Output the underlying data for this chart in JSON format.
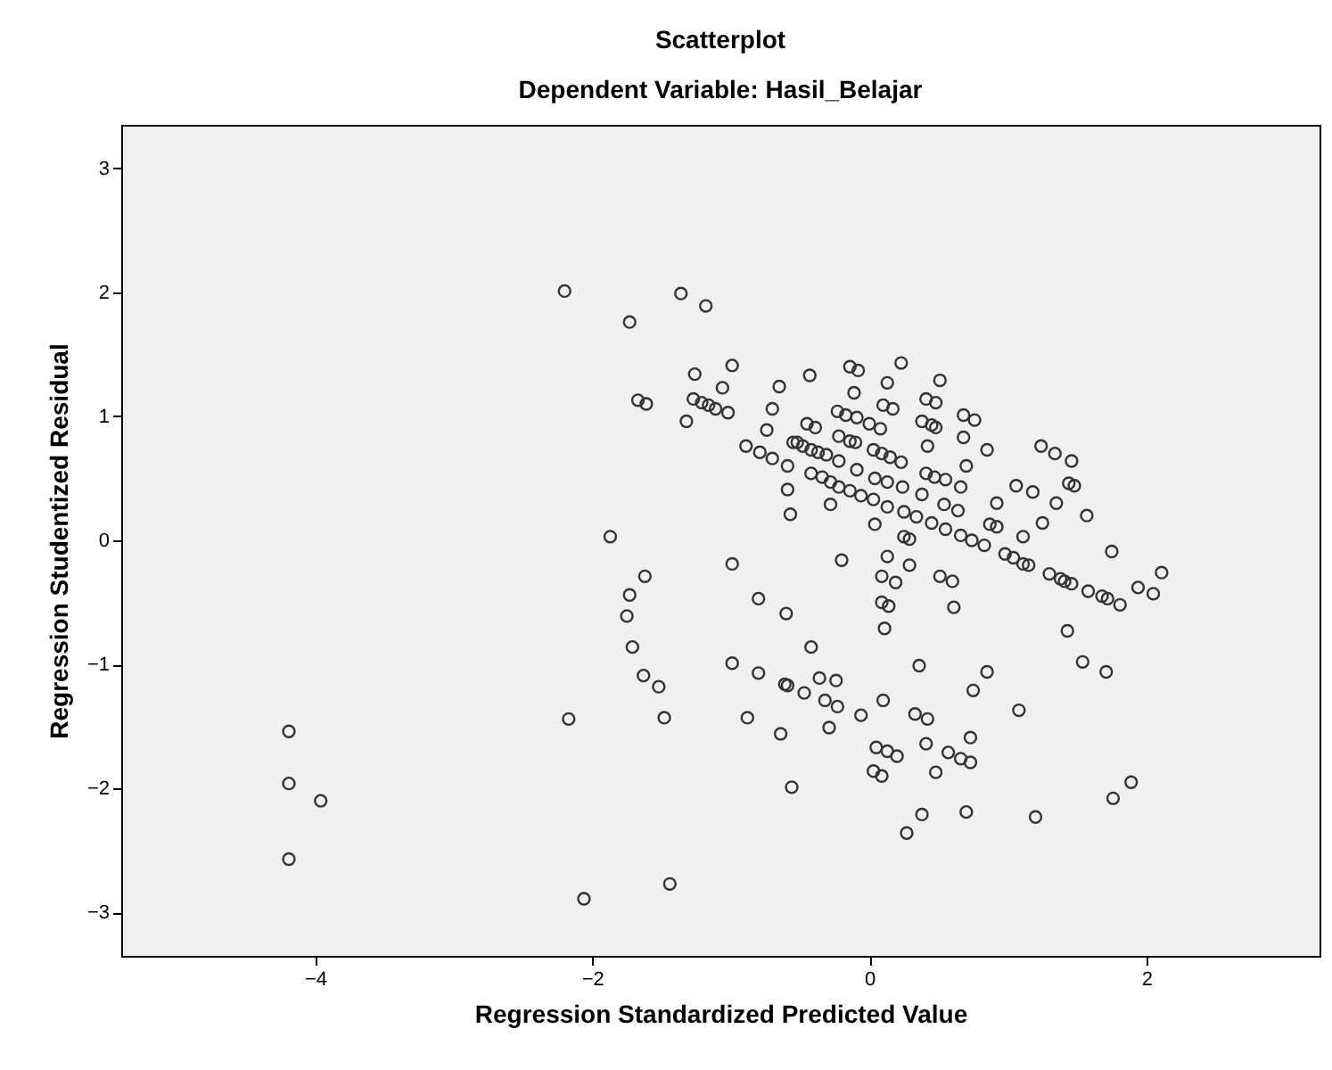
{
  "chart_data": {
    "type": "scatter",
    "title": "Scatterplot",
    "subtitle": "Dependent Variable: Hasil_Belajar",
    "xlabel": "Regression Standardized Predicted Value",
    "ylabel": "Regression Studentized Residual",
    "x": [
      -4.19,
      -4.19,
      -3.96,
      -4.19,
      -2.2,
      -1.36,
      -1.18,
      -1.73,
      -1.26,
      -0.99,
      -1.06,
      -1.67,
      -1.61,
      -1.27,
      -1.21,
      -1.16,
      -1.11,
      -1.02,
      -1.32,
      -0.65,
      -0.43,
      -0.7,
      -0.74,
      -0.89,
      -0.79,
      -0.7,
      -0.59,
      -0.59,
      -0.57,
      -0.45,
      -0.52,
      -1.87,
      -0.99,
      -1.62,
      -1.73,
      -1.75,
      -0.8,
      -0.6,
      -1.71,
      -1.63,
      -1.52,
      -1.48,
      -2.17,
      -0.99,
      -0.8,
      -0.61,
      -0.59,
      -0.47,
      -0.42,
      -0.88,
      -0.64,
      -0.56,
      -1.44,
      -2.06,
      -0.14,
      -0.08,
      0.23,
      0.13,
      0.51,
      -0.11,
      0.41,
      0.48,
      -0.23,
      -0.17,
      -0.09,
      0.1,
      0.17,
      0,
      0.08,
      0.38,
      0.45,
      0.48,
      0.68,
      0.76,
      -0.39,
      -0.22,
      -0.14,
      -0.1,
      0.68,
      0.85,
      0.42,
      0.7,
      -0.55,
      -0.48,
      -0.42,
      -0.37,
      -0.31,
      -0.22,
      -0.09,
      0.03,
      0.09,
      0.15,
      0.23,
      0.41,
      0.47,
      0.55,
      -0.42,
      -0.34,
      -0.28,
      -0.22,
      -0.14,
      0.04,
      0.13,
      0.24,
      0.38,
      0.66,
      -0.06,
      0.03,
      0.13,
      0.25,
      0.34,
      0.45,
      0.55,
      0.66,
      0.74,
      0.83,
      0.54,
      0.64,
      0.92,
      0.87,
      0.92,
      -0.28,
      0.04,
      0.25,
      0.29,
      0.13,
      0.29,
      -0.2,
      0.09,
      0.19,
      0.51,
      0.6,
      0.09,
      0.14,
      0.61,
      0.98,
      1.04,
      1.11,
      1.15,
      1.06,
      1.18,
      1.11,
      1.24,
      1.34,
      1.35,
      1.25,
      1.3,
      1.38,
      1.46,
      1.44,
      1.48,
      1.57,
      1.75,
      1.41,
      1.46,
      1.58,
      1.68,
      1.72,
      1.81,
      1.94,
      2.05,
      2.11,
      1.43,
      1.54,
      1.71,
      1.89,
      1.76,
      1.2,
      0.11,
      0.36,
      0.85,
      -0.36,
      -0.24,
      -0.32,
      -0.23,
      -0.06,
      0.1,
      -0.29,
      0.33,
      0.42,
      0.75,
      0.41,
      0.73,
      0.05,
      0.13,
      0.2,
      0.03,
      0.09,
      0.48,
      0.57,
      0.66,
      0.73,
      1.08,
      0.38,
      0.27,
      0.7
    ],
    "values": [
      -1.54,
      -1.96,
      -2.1,
      -2.57,
      2.01,
      1.99,
      1.89,
      1.76,
      1.34,
      1.41,
      1.23,
      1.13,
      1.1,
      1.14,
      1.11,
      1.09,
      1.06,
      1.03,
      0.96,
      1.24,
      1.33,
      1.06,
      0.89,
      0.76,
      0.71,
      0.66,
      0.6,
      0.41,
      0.21,
      0.94,
      0.79,
      0.03,
      -0.19,
      -0.29,
      -0.44,
      -0.61,
      -0.47,
      -0.59,
      -0.86,
      -1.09,
      -1.18,
      -1.43,
      -1.44,
      -0.99,
      -1.07,
      -1.16,
      -1.17,
      -1.23,
      -0.86,
      -1.43,
      -1.56,
      -1.99,
      -2.77,
      -2.89,
      1.4,
      1.37,
      1.43,
      1.27,
      1.29,
      1.19,
      1.14,
      1.11,
      1.04,
      1.01,
      0.99,
      1.09,
      1.06,
      0.94,
      0.9,
      0.96,
      0.93,
      0.91,
      1.01,
      0.97,
      0.91,
      0.84,
      0.8,
      0.79,
      0.83,
      0.73,
      0.76,
      0.6,
      0.79,
      0.76,
      0.73,
      0.71,
      0.69,
      0.64,
      0.57,
      0.73,
      0.7,
      0.67,
      0.63,
      0.54,
      0.51,
      0.49,
      0.54,
      0.51,
      0.47,
      0.43,
      0.4,
      0.5,
      0.47,
      0.43,
      0.37,
      0.43,
      0.36,
      0.33,
      0.27,
      0.23,
      0.19,
      0.14,
      0.09,
      0.04,
      0,
      -0.04,
      0.29,
      0.24,
      0.3,
      0.13,
      0.11,
      0.29,
      0.13,
      0.03,
      0.01,
      -0.13,
      -0.2,
      -0.16,
      -0.29,
      -0.34,
      -0.29,
      -0.33,
      -0.5,
      -0.53,
      -0.54,
      -0.11,
      -0.14,
      -0.19,
      -0.2,
      0.44,
      0.39,
      0.03,
      0.76,
      0.7,
      0.3,
      0.14,
      -0.27,
      -0.31,
      0.64,
      0.46,
      0.44,
      0.2,
      -0.09,
      -0.33,
      -0.35,
      -0.41,
      -0.45,
      -0.47,
      -0.52,
      -0.38,
      -0.43,
      -0.26,
      -0.73,
      -0.98,
      -1.06,
      -1.95,
      -2.08,
      -2.23,
      -0.71,
      -1.01,
      -1.06,
      -1.11,
      -1.13,
      -1.29,
      -1.34,
      -1.41,
      -1.29,
      -1.51,
      -1.4,
      -1.44,
      -1.21,
      -1.64,
      -1.59,
      -1.67,
      -1.7,
      -1.74,
      -1.86,
      -1.9,
      -1.87,
      -1.71,
      -1.76,
      -1.79,
      -1.37,
      -2.21,
      -2.36,
      -2.19
    ],
    "color": "#333333",
    "marker": "circle",
    "xlim": [
      -5.4,
      3.25
    ],
    "ylim": [
      -3.35,
      3.35
    ],
    "xticks": [
      -4,
      -2,
      0,
      2
    ],
    "yticks": [
      -3,
      -2,
      -1,
      0,
      1,
      2,
      3
    ],
    "grid": false
  }
}
